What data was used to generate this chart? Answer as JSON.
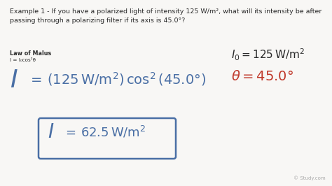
{
  "background_color": "#f8f7f5",
  "title_text": "Example 1 - If you have a polarized light of intensity 125 W/m², what will its intensity be after\npassing through a polarizing filter if its axis is 45.0°?",
  "law_label": "Law of Malus",
  "law_formula": "I = I₀cos²θ",
  "watermark": "© Study.com",
  "text_color_dark": "#2a2a2a",
  "text_color_blue": "#4a6fa5",
  "text_color_red": "#c0392b",
  "box_color": "#4a6fa5",
  "title_fontsize": 6.8,
  "law_label_fontsize": 5.8,
  "law_formula_fontsize": 5.2,
  "main_I_fontsize": 26,
  "main_eq_fontsize": 14,
  "result_I_fontsize": 20,
  "result_eq_fontsize": 13,
  "side_eq1_fontsize": 11,
  "side_eq2_fontsize": 14
}
